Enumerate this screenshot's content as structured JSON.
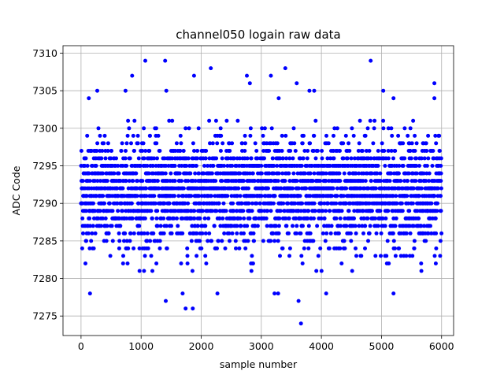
{
  "chart_data": {
    "type": "scatter",
    "title": "channel050 logain raw data",
    "xlabel": "sample number",
    "ylabel": "ADC Code",
    "xlim": [
      -300,
      6200
    ],
    "ylim": [
      7272.4,
      7311.0
    ],
    "xticks": [
      0,
      1000,
      2000,
      3000,
      4000,
      5000,
      6000
    ],
    "yticks": [
      7275,
      7280,
      7285,
      7290,
      7295,
      7300,
      7305,
      7310
    ],
    "grid": true,
    "marker_color": "#0000ff",
    "marker": "filled-circle",
    "n_samples": 6000,
    "series": [
      {
        "x_range": [
          0,
          5999
        ],
        "values_dense_range": [
          7281,
          7301
        ],
        "center": 7291.5,
        "outliers": [
          {
            "x": 1070,
            "y": 7309
          },
          {
            "x": 1400,
            "y": 7309
          },
          {
            "x": 4820,
            "y": 7309
          },
          {
            "x": 2160,
            "y": 7308
          },
          {
            "x": 3400,
            "y": 7308
          },
          {
            "x": 850,
            "y": 7307
          },
          {
            "x": 1880,
            "y": 7307
          },
          {
            "x": 2760,
            "y": 7307
          },
          {
            "x": 3160,
            "y": 7307
          },
          {
            "x": 5880,
            "y": 7306
          },
          {
            "x": 3590,
            "y": 7306
          },
          {
            "x": 2810,
            "y": 7306
          },
          {
            "x": 270,
            "y": 7305
          },
          {
            "x": 740,
            "y": 7305
          },
          {
            "x": 1420,
            "y": 7305
          },
          {
            "x": 3800,
            "y": 7305
          },
          {
            "x": 3880,
            "y": 7305
          },
          {
            "x": 5030,
            "y": 7305
          },
          {
            "x": 130,
            "y": 7304
          },
          {
            "x": 3290,
            "y": 7304
          },
          {
            "x": 5200,
            "y": 7304
          },
          {
            "x": 5880,
            "y": 7304
          },
          {
            "x": 1410,
            "y": 7277
          },
          {
            "x": 3620,
            "y": 7277
          },
          {
            "x": 1740,
            "y": 7276
          },
          {
            "x": 1860,
            "y": 7276
          },
          {
            "x": 3660,
            "y": 7274
          },
          {
            "x": 150,
            "y": 7278
          },
          {
            "x": 1690,
            "y": 7278
          },
          {
            "x": 2270,
            "y": 7278
          },
          {
            "x": 3220,
            "y": 7278
          },
          {
            "x": 3280,
            "y": 7278
          },
          {
            "x": 4080,
            "y": 7278
          },
          {
            "x": 5200,
            "y": 7278
          }
        ]
      }
    ]
  }
}
